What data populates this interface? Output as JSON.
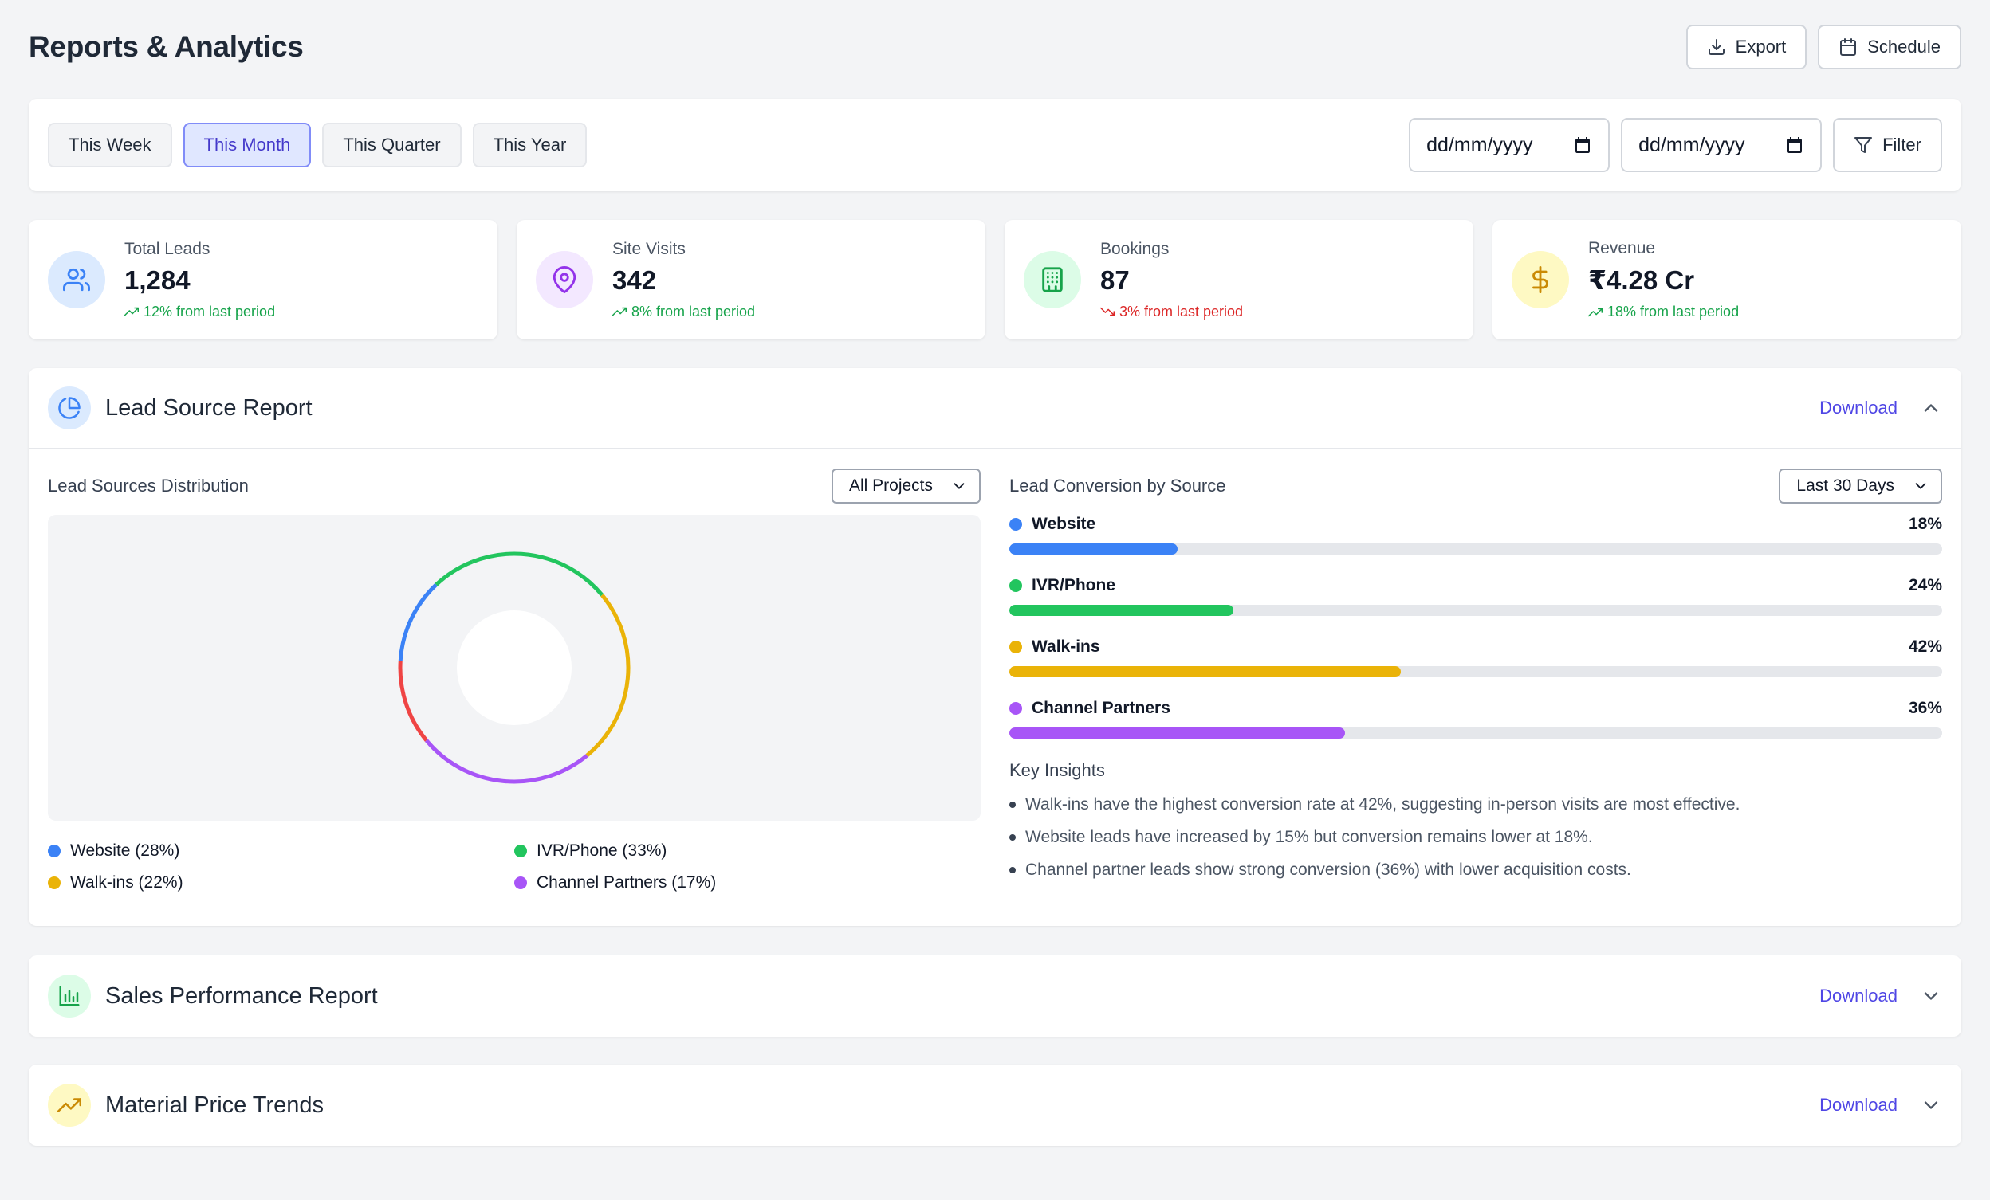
{
  "header": {
    "title": "Reports & Analytics",
    "export_label": "Export",
    "schedule_label": "Schedule"
  },
  "filters": {
    "periods": [
      "This Week",
      "This Month",
      "This Quarter",
      "This Year"
    ],
    "active_period": "This Month",
    "date_from": "dd/mm/yyyy",
    "date_to": "dd/mm/yyyy",
    "filter_label": "Filter"
  },
  "stats": [
    {
      "label": "Total Leads",
      "value": "1,284",
      "change": "12% from last period",
      "trend": "up",
      "icon": "users-icon",
      "color": "#3b82f6",
      "bg": "#dbeafe"
    },
    {
      "label": "Site Visits",
      "value": "342",
      "change": "8% from last period",
      "trend": "up",
      "icon": "map-pin-icon",
      "color": "#9333ea",
      "bg": "#f3e8ff"
    },
    {
      "label": "Bookings",
      "value": "87",
      "change": "3% from last period",
      "trend": "down",
      "icon": "building-icon",
      "color": "#16a34a",
      "bg": "#dcfce7"
    },
    {
      "label": "Revenue",
      "value": "₹4.28 Cr",
      "change": "18% from last period",
      "trend": "up",
      "icon": "dollar-icon",
      "color": "#ca8a04",
      "bg": "#fef9c3"
    }
  ],
  "lead_source": {
    "title": "Lead Source Report",
    "download_label": "Download",
    "distribution_title": "Lead Sources Distribution",
    "project_select": "All Projects",
    "conversion_title": "Lead Conversion by Source",
    "range_select": "Last 30 Days",
    "legend": [
      {
        "label": "Website (28%)",
        "color": "#3b82f6"
      },
      {
        "label": "IVR/Phone (33%)",
        "color": "#22c55e"
      },
      {
        "label": "Walk-ins (22%)",
        "color": "#eab308"
      },
      {
        "label": "Channel Partners (17%)",
        "color": "#a855f7"
      }
    ],
    "conversion": [
      {
        "name": "Website",
        "pct": "18%",
        "value": 0.18,
        "color": "#3b82f6"
      },
      {
        "name": "IVR/Phone",
        "pct": "24%",
        "value": 0.24,
        "color": "#22c55e"
      },
      {
        "name": "Walk-ins",
        "pct": "42%",
        "value": 0.42,
        "color": "#eab308"
      },
      {
        "name": "Channel Partners",
        "pct": "36%",
        "value": 0.36,
        "color": "#a855f7"
      }
    ],
    "insights_title": "Key Insights",
    "insights": [
      "Walk-ins have the highest conversion rate at 42%, suggesting in-person visits are most effective.",
      "Website leads have increased by 15% but conversion remains lower at 18%.",
      "Channel partner leads show strong conversion (36%) with lower acquisition costs."
    ]
  },
  "sales": {
    "title": "Sales Performance Report",
    "download_label": "Download"
  },
  "material": {
    "title": "Material Price Trends",
    "download_label": "Download"
  }
}
